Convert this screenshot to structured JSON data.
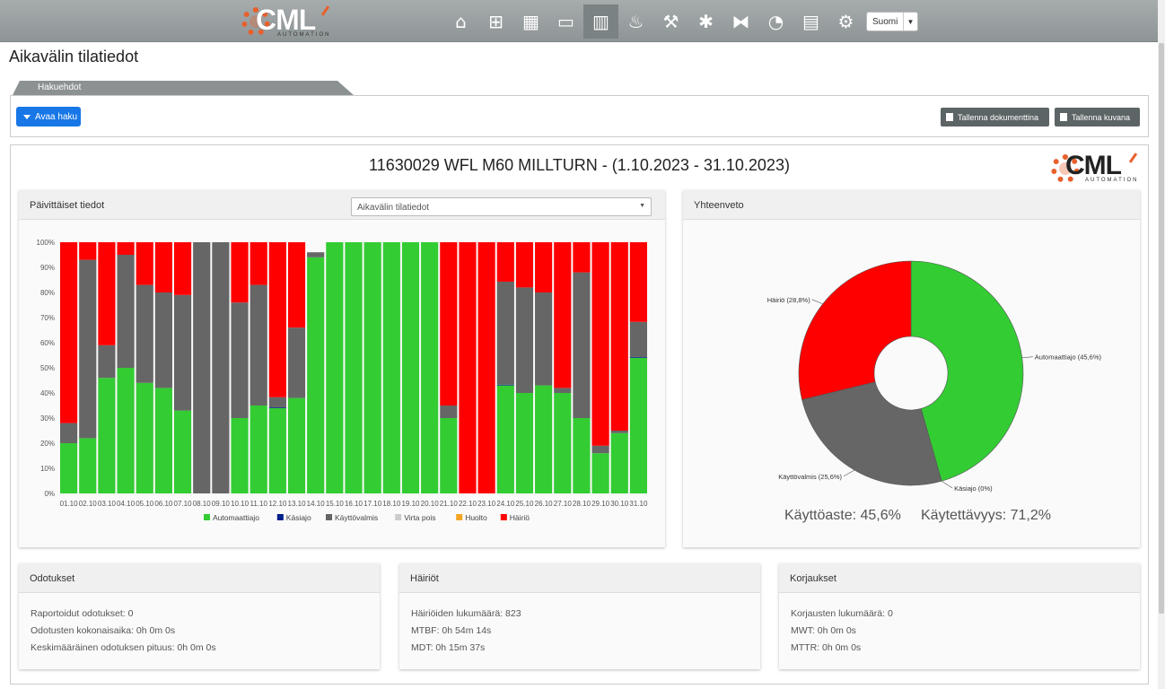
{
  "nav": {
    "logo_text": "CML",
    "logo_sub": "AUTOMATION",
    "icons": [
      "home-icon",
      "grid-icon",
      "dashboard-icon",
      "tablet-icon",
      "bar-chart-icon",
      "flame-icon",
      "wrench-icon",
      "bug-icon",
      "tags-icon",
      "pie-chart-icon",
      "calculator-icon",
      "gear-icon"
    ],
    "language": "Suomi"
  },
  "page": {
    "title": "Aikavälin tilatiedot"
  },
  "search": {
    "tab_label": "Hakuehdot",
    "open_button": "Avaa haku",
    "save_doc_button": "Tallenna dokumenttina",
    "save_image_button": "Tallenna kuvana"
  },
  "report": {
    "title": "11630029 WFL M60 MILLTURN - (1.10.2023 - 31.10.2023)",
    "daily": {
      "header": "Päivittäiset tiedot",
      "select_value": "Aikavälin tilatiedot"
    },
    "summary": {
      "header": "Yhteenveto",
      "utilization": "Käyttöaste: 45,6%",
      "availability": "Käytettävyys: 71,2%"
    },
    "waits": {
      "header": "Odotukset",
      "lines": [
        "Raportoidut odotukset: 0",
        "Odotusten kokonaisaika: 0h 0m 0s",
        "Keskimääräinen odotuksen pituus: 0h 0m 0s"
      ]
    },
    "faults": {
      "header": "Häiriöt",
      "lines": [
        "Häiriöiden lukumäärä: 823",
        "MTBF: 0h 54m 14s",
        "MDT: 0h 15m 37s"
      ]
    },
    "repairs": {
      "header": "Korjaukset",
      "lines": [
        "Korjausten lukumäärä: 0",
        "MWT: 0h 0m 0s",
        "MTTR: 0h 0m 0s"
      ]
    }
  },
  "colors": {
    "auto": "#33cc33",
    "manual": "#001f8c",
    "ready": "#666666",
    "off": "#cccccc",
    "maint": "#f5a623",
    "fault": "#ff0000"
  },
  "chart_data": [
    {
      "type": "bar",
      "stacked": true,
      "categories": [
        "01.10",
        "02.10",
        "03.10",
        "04.10",
        "05.10",
        "06.10",
        "07.10",
        "08.10",
        "09.10",
        "10.10",
        "11.10",
        "12.10",
        "13.10",
        "14.10",
        "15.10",
        "16.10",
        "17.10",
        "18.10",
        "19.10",
        "20.10",
        "21.10",
        "22.10",
        "23.10",
        "24.10",
        "25.10",
        "26.10",
        "27.10",
        "28.10",
        "29.10",
        "30.10",
        "31.10"
      ],
      "yticks": [
        "0%",
        "10%",
        "20%",
        "30%",
        "40%",
        "50%",
        "60%",
        "70%",
        "80%",
        "90%",
        "100%"
      ],
      "ylim": [
        0,
        100
      ],
      "series": [
        {
          "name": "Automaattiajo",
          "color": "#33cc33",
          "values": [
            20,
            22,
            46,
            50,
            44,
            42,
            33,
            0,
            0,
            30,
            35,
            34,
            38,
            94,
            100,
            100,
            100,
            100,
            100,
            100,
            30,
            0,
            0,
            43,
            40,
            43,
            40,
            30,
            16,
            24,
            54
          ]
        },
        {
          "name": "Käsiajo",
          "color": "#001f8c",
          "values": [
            0,
            0,
            0,
            0,
            0,
            0,
            0,
            0,
            0,
            0,
            0,
            0.3,
            0,
            0,
            0,
            0,
            0,
            0,
            0,
            0,
            0,
            0,
            0,
            0.3,
            0,
            0,
            0,
            0,
            0,
            0,
            0.3
          ]
        },
        {
          "name": "Käyttövalmis",
          "color": "#666666",
          "values": [
            8,
            71,
            13,
            45,
            39,
            38,
            46,
            100,
            100,
            46,
            48,
            4,
            28,
            2,
            0,
            0,
            0,
            0,
            0,
            0,
            5,
            0,
            0,
            41,
            42,
            37,
            2,
            58,
            3,
            1,
            14
          ]
        },
        {
          "name": "Virta pois",
          "color": "#cccccc",
          "values": [
            0,
            0,
            0,
            0,
            0,
            0,
            0,
            0,
            0,
            0,
            0,
            0,
            0,
            0,
            0,
            0,
            0,
            0,
            0,
            0,
            0,
            0,
            0,
            0,
            0,
            0,
            0,
            0,
            0,
            0,
            0
          ]
        },
        {
          "name": "Huolto",
          "color": "#f5a623",
          "values": [
            0,
            0,
            0,
            0,
            0,
            0,
            0,
            0,
            0,
            0,
            0,
            0,
            0,
            0,
            0,
            0,
            0,
            0,
            0,
            0,
            0,
            0,
            0,
            0,
            0,
            0,
            0,
            0,
            0,
            0,
            0
          ]
        },
        {
          "name": "Häiriö",
          "color": "#ff0000",
          "values": [
            72,
            7,
            41,
            5,
            17,
            20,
            21,
            0,
            0,
            24,
            17,
            61.7,
            34,
            0,
            0,
            0,
            0,
            0,
            0,
            0,
            65,
            100,
            100,
            15.7,
            18,
            20,
            58,
            12,
            81,
            75,
            31.7
          ]
        }
      ]
    },
    {
      "type": "pie",
      "donut": true,
      "slices": [
        {
          "label": "Automaattiajo (45,6%)",
          "value": 45.6,
          "color": "#33cc33"
        },
        {
          "label": "Käsiajo (0%)",
          "value": 0.0,
          "color": "#001f8c"
        },
        {
          "label": "Käyttövalmis (25,6%)",
          "value": 25.6,
          "color": "#666666"
        },
        {
          "label": "Häiriö (28,8%)",
          "value": 28.8,
          "color": "#ff0000"
        }
      ]
    }
  ]
}
